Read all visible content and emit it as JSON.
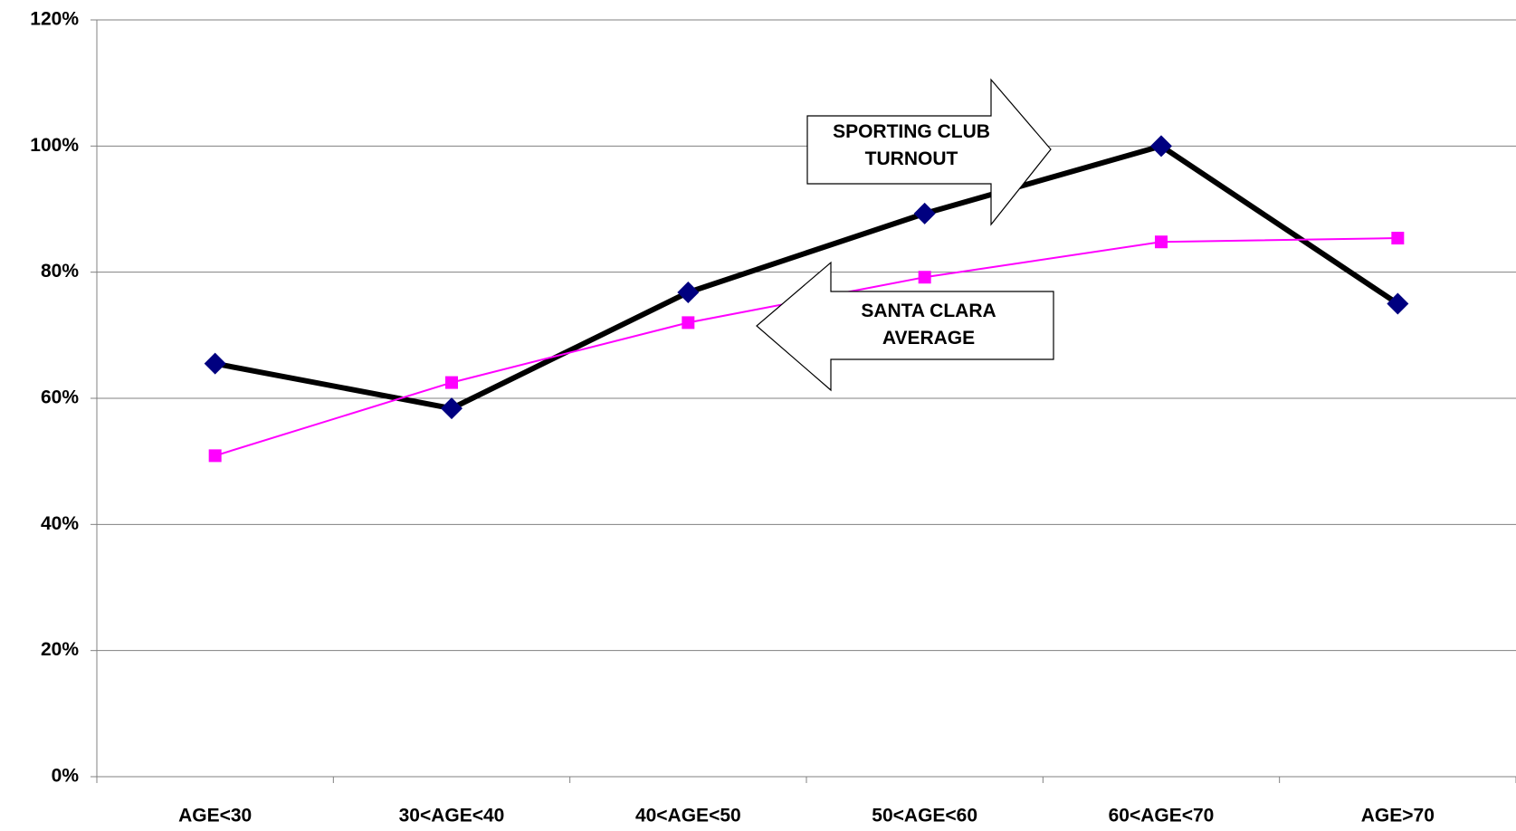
{
  "chart_data": {
    "type": "line",
    "categories": [
      "AGE<30",
      "30<AGE<40",
      "40<AGE<50",
      "50<AGE<60",
      "60<AGE<70",
      "AGE>70"
    ],
    "series": [
      {
        "name": "SPORTING CLUB TURNOUT",
        "color": "#000000",
        "marker_color": "#000080",
        "marker": "diamond",
        "values": [
          65.5,
          58.4,
          76.8,
          89.3,
          100,
          75
        ]
      },
      {
        "name": "SANTA CLARA AVERAGE",
        "color": "#ff00ff",
        "marker_color": "#ff00ff",
        "marker": "square",
        "values": [
          50.9,
          62.5,
          72.0,
          79.2,
          84.8,
          85.4
        ]
      }
    ],
    "ylim": [
      0,
      120
    ],
    "yticks": [
      {
        "value": 0,
        "label": "0%"
      },
      {
        "value": 20,
        "label": "20%"
      },
      {
        "value": 40,
        "label": "40%"
      },
      {
        "value": 60,
        "label": "60%"
      },
      {
        "value": 80,
        "label": "80%"
      },
      {
        "value": 100,
        "label": "100%"
      },
      {
        "value": 120,
        "label": "120%"
      }
    ],
    "grid": true
  }
}
